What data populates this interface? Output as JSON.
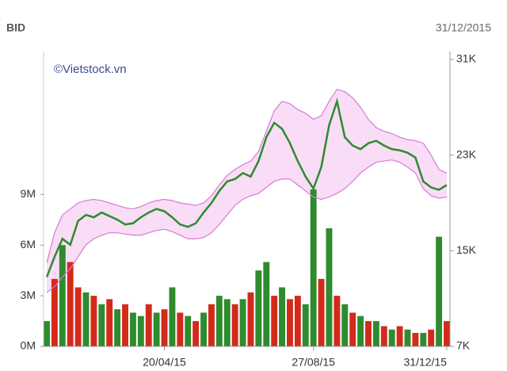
{
  "chart_data": {
    "type": "stock",
    "title": "BID",
    "subtitle": "31/12/2015",
    "annotation": "©Vietstock.vn",
    "categories": [
      null,
      null,
      null,
      null,
      null,
      null,
      null,
      null,
      null,
      null,
      null,
      null,
      null,
      null,
      null,
      "20/04/15",
      null,
      null,
      null,
      null,
      null,
      null,
      null,
      null,
      null,
      null,
      null,
      null,
      null,
      null,
      null,
      null,
      null,
      null,
      "27/08/15",
      null,
      null,
      null,
      null,
      null,
      null,
      null,
      null,
      null,
      null,
      null,
      null,
      null,
      null,
      null,
      null,
      "31/12/15"
    ],
    "ylim": [
      0,
      17000000
    ],
    "yticks": [
      {
        "value": 0,
        "label": "0M"
      },
      {
        "value": 3000000,
        "label": "3M"
      },
      {
        "value": 6000000,
        "label": "6M"
      },
      {
        "value": 9000000,
        "label": "9M"
      }
    ],
    "y2lim": [
      7000,
      31000
    ],
    "y2ticks": [
      {
        "value": 7000,
        "label": "7K"
      },
      {
        "value": 15000,
        "label": "15K"
      },
      {
        "value": 23000,
        "label": "23K"
      },
      {
        "value": 31000,
        "label": "31K"
      }
    ],
    "band_fill": "#f9dcf6",
    "series": [
      {
        "kind": "volume",
        "axis": "y",
        "colors": [
          "#2e8b2e",
          "#d42a1a",
          "#2e8b2e",
          "#d42a1a",
          "#d42a1a",
          "#2e8b2e",
          "#d42a1a",
          "#2e8b2e",
          "#d42a1a",
          "#2e8b2e",
          "#d42a1a",
          "#2e8b2e",
          "#2e8b2e",
          "#d42a1a",
          "#2e8b2e",
          "#d42a1a",
          "#2e8b2e",
          "#d42a1a",
          "#2e8b2e",
          "#d42a1a",
          "#2e8b2e",
          "#d42a1a",
          "#2e8b2e",
          "#2e8b2e",
          "#d42a1a",
          "#2e8b2e",
          "#d42a1a",
          "#2e8b2e",
          "#2e8b2e",
          "#d42a1a",
          "#2e8b2e",
          "#d42a1a",
          "#d42a1a",
          "#2e8b2e",
          "#2e8b2e",
          "#d42a1a",
          "#2e8b2e",
          "#d42a1a",
          "#2e8b2e",
          "#d42a1a",
          "#2e8b2e",
          "#d42a1a",
          "#2e8b2e",
          "#d42a1a",
          "#2e8b2e",
          "#d42a1a",
          "#2e8b2e",
          "#d42a1a",
          "#2e8b2e",
          "#d42a1a",
          "#2e8b2e",
          "#d42a1a"
        ],
        "values": [
          1500000,
          4000000,
          6000000,
          5000000,
          3500000,
          3200000,
          3000000,
          2500000,
          2800000,
          2200000,
          2500000,
          2000000,
          1800000,
          2500000,
          2000000,
          2200000,
          3500000,
          2000000,
          1800000,
          1500000,
          2000000,
          2500000,
          3000000,
          2800000,
          2500000,
          2800000,
          3200000,
          4500000,
          5000000,
          3000000,
          3500000,
          2800000,
          3000000,
          2500000,
          9300000,
          4000000,
          7000000,
          3000000,
          2500000,
          2000000,
          1800000,
          1500000,
          1500000,
          1200000,
          1000000,
          1200000,
          1000000,
          800000,
          800000,
          1000000,
          6500000,
          1500000
        ]
      },
      {
        "kind": "upper",
        "axis": "y2",
        "color": "#d67ad6",
        "values": [
          14000,
          16500,
          18000,
          18500,
          19000,
          19200,
          19300,
          19200,
          19000,
          18800,
          18600,
          18500,
          18700,
          19000,
          19200,
          19300,
          19200,
          19000,
          18900,
          18800,
          19000,
          19600,
          20500,
          21300,
          21800,
          22200,
          22500,
          23300,
          25000,
          26700,
          27500,
          27300,
          26800,
          26500,
          26000,
          26300,
          27500,
          28500,
          28300,
          27800,
          27000,
          26000,
          25300,
          25000,
          24800,
          24500,
          24300,
          24200,
          24000,
          23000,
          21800,
          21500
        ]
      },
      {
        "kind": "lower",
        "axis": "y2",
        "color": "#d67ad6",
        "values": [
          11500,
          12000,
          12800,
          13500,
          14500,
          15500,
          16000,
          16300,
          16500,
          16500,
          16400,
          16300,
          16300,
          16500,
          16700,
          16800,
          16600,
          16300,
          16000,
          16000,
          16100,
          16500,
          17200,
          18000,
          18800,
          19300,
          19600,
          19800,
          20300,
          20800,
          21000,
          21000,
          20500,
          20000,
          19500,
          19300,
          19500,
          19800,
          20200,
          20800,
          21500,
          22000,
          22400,
          22500,
          22600,
          22400,
          22000,
          21500,
          20200,
          19600,
          19400,
          19500
        ]
      },
      {
        "kind": "price",
        "axis": "y2",
        "color": "#2e8b2e",
        "values": [
          12800,
          14500,
          16000,
          15500,
          17500,
          18000,
          17800,
          18200,
          17900,
          17600,
          17200,
          17300,
          17800,
          18200,
          18500,
          18300,
          17800,
          17200,
          17000,
          17300,
          18200,
          19000,
          20000,
          20800,
          21000,
          21500,
          21200,
          22500,
          24500,
          25700,
          25200,
          24000,
          22500,
          21200,
          20200,
          22000,
          25500,
          27500,
          24500,
          23800,
          23500,
          24000,
          24200,
          23800,
          23500,
          23400,
          23200,
          22800,
          20800,
          20300,
          20100,
          20500
        ]
      }
    ]
  }
}
